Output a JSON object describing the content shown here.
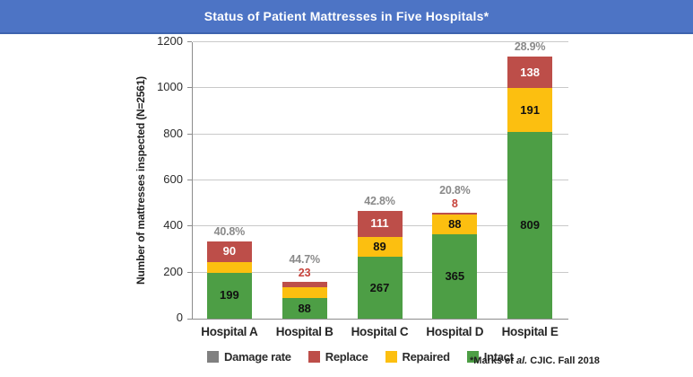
{
  "chart_data": {
    "type": "bar",
    "stacked": true,
    "title": "Status of Patient Mattresses in Five Hospitals*",
    "categories": [
      "Hospital A",
      "Hospital B",
      "Hospital C",
      "Hospital D",
      "Hospital E"
    ],
    "series": [
      {
        "name": "Intact",
        "color": "#4d9e45",
        "text_color": "#111111",
        "values": [
          199,
          88,
          267,
          365,
          809
        ]
      },
      {
        "name": "Repaired",
        "color": "#fcbf10",
        "text_color": "#111111",
        "values": [
          47,
          48,
          89,
          88,
          191
        ]
      },
      {
        "name": "Replace",
        "color": "#bd4e49",
        "text_color": "#ffffff",
        "values": [
          90,
          23,
          111,
          8,
          138
        ]
      }
    ],
    "damage_rates": [
      "40.8%",
      "44.7%",
      "42.8%",
      "20.8%",
      "28.9%"
    ],
    "replace_label_outside": [
      false,
      true,
      false,
      true,
      false
    ],
    "ylabel": "Number of mattresses inspected (N=2561)",
    "yticks": [
      0,
      200,
      400,
      600,
      800,
      1000,
      1200
    ],
    "ylim": [
      0,
      1200
    ],
    "grid": true,
    "legend_position": "bottom",
    "legend": [
      {
        "label": "Damage rate",
        "color": "#808080"
      },
      {
        "label": "Replace",
        "color": "#bd4e49"
      },
      {
        "label": "Repaired",
        "color": "#fcbf10"
      },
      {
        "label": "Intact",
        "color": "#4d9e45"
      }
    ]
  },
  "footnote": {
    "prefix": "*Marks ",
    "italic": "et al.",
    "suffix": " CJIC. Fall 2018"
  },
  "colors": {
    "header_bg": "#4d74c5",
    "header_border": "#3d63ae",
    "damage_label": "#8a8a8a",
    "outside_replace_label": "#c7433c",
    "grid": "#c9c9c9",
    "axis": "#8c8c8c"
  }
}
